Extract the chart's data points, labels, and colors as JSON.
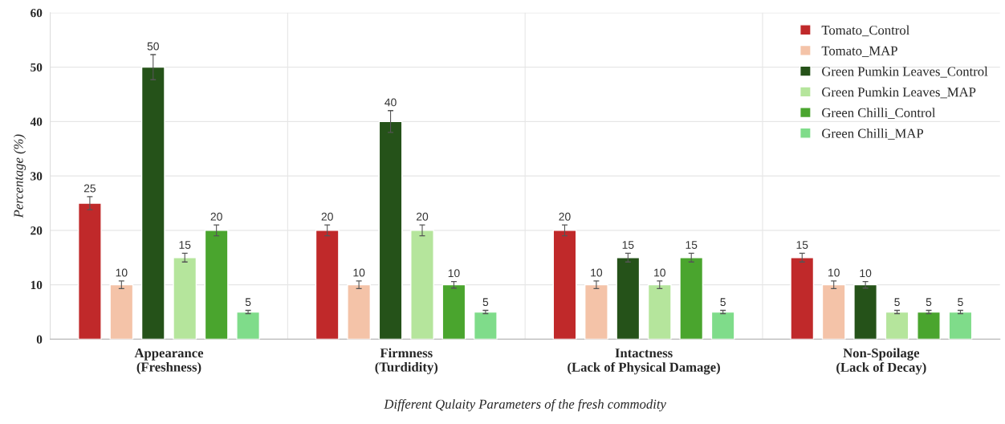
{
  "chart_data": {
    "type": "bar",
    "xlabel": "Different Qulaity Parameters of the fresh commodity",
    "ylabel": "Percentage (%)",
    "categories": [
      "Appearance\n(Freshness)",
      "Firmness\n(Turdidity)",
      "Intactness\n(Lack of Physical Damage)",
      "Non-Spoilage\n(Lack of Decay)"
    ],
    "series": [
      {
        "name": "Tomato_Control",
        "color": "#c0292a",
        "values": [
          25,
          20,
          20,
          15
        ],
        "errors": [
          1.2,
          1,
          1,
          0.8
        ]
      },
      {
        "name": "Tomato_MAP",
        "color": "#f4c3a8",
        "values": [
          10,
          10,
          10,
          10
        ],
        "errors": [
          0.7,
          0.7,
          0.7,
          0.7
        ]
      },
      {
        "name": "Green Pumkin Leaves_Control",
        "color": "#255219",
        "values": [
          50,
          40,
          15,
          10
        ],
        "errors": [
          2.3,
          2,
          0.8,
          0.6
        ]
      },
      {
        "name": "Green Pumkin Leaves_MAP",
        "color": "#b5e59c",
        "values": [
          15,
          20,
          10,
          5
        ],
        "errors": [
          0.8,
          1,
          0.7,
          0.3
        ]
      },
      {
        "name": "Green Chilli_Control",
        "color": "#4aa52e",
        "values": [
          20,
          10,
          15,
          5
        ],
        "errors": [
          1,
          0.6,
          0.8,
          0.3
        ]
      },
      {
        "name": "Green Chilli_MAP",
        "color": "#7fdc8a",
        "values": [
          5,
          5,
          5,
          5
        ],
        "errors": [
          0.3,
          0.3,
          0.3,
          0.3
        ]
      }
    ],
    "ylim": [
      0,
      60
    ],
    "yticks": [
      0,
      10,
      20,
      30,
      40,
      50,
      60
    ],
    "grid": true,
    "legend": "top right",
    "data_labels": true
  }
}
